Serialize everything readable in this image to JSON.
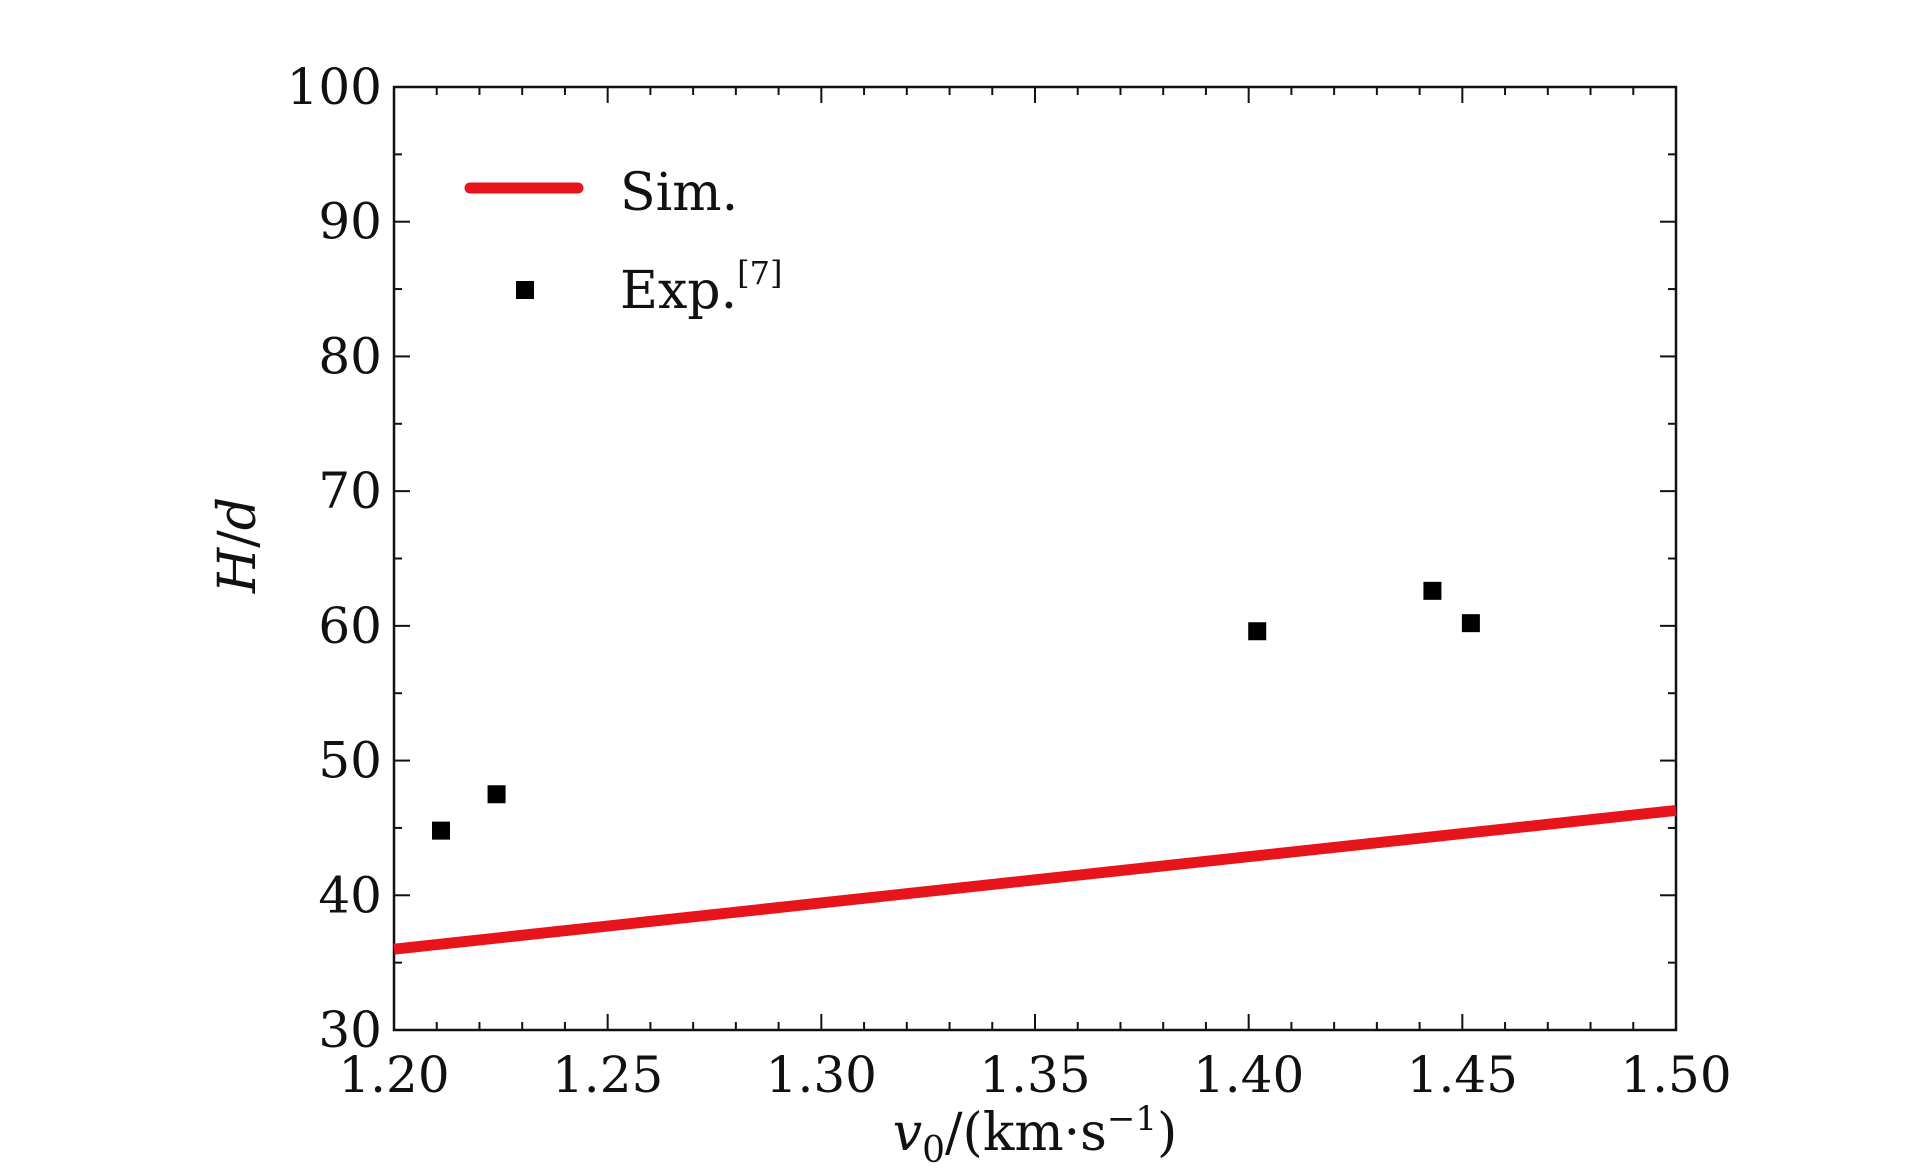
{
  "chart_data": {
    "type": "scatter",
    "xlabel": {
      "var": "v",
      "sub": "0",
      "units": "/(km·s",
      "sup": "−1",
      "close": ")"
    },
    "ylabel": {
      "var": "H",
      "sep": "/",
      "var2": "d"
    },
    "xlim": [
      1.2,
      1.5
    ],
    "ylim": [
      30,
      100
    ],
    "x_ticks": [
      1.2,
      1.25,
      1.3,
      1.35,
      1.4,
      1.45,
      1.5
    ],
    "x_tick_labels": [
      "1.20",
      "1.25",
      "1.30",
      "1.35",
      "1.40",
      "1.45",
      "1.50"
    ],
    "y_ticks": [
      30,
      40,
      50,
      60,
      70,
      80,
      90,
      100
    ],
    "y_tick_labels": [
      "30",
      "40",
      "50",
      "60",
      "70",
      "80",
      "90",
      "100"
    ],
    "grid": false,
    "legend_position": "top-left",
    "series": [
      {
        "name": "Sim.",
        "kind": "line",
        "color": "#e8141b",
        "x": [
          1.2,
          1.5
        ],
        "y": [
          36.0,
          46.3
        ]
      },
      {
        "name": "Exp.",
        "name_sup": "[7]",
        "kind": "scatter",
        "marker": "square",
        "color": "#000000",
        "x": [
          1.211,
          1.224,
          1.402,
          1.443,
          1.452
        ],
        "y": [
          44.8,
          47.5,
          59.6,
          62.6,
          60.2
        ]
      }
    ]
  }
}
